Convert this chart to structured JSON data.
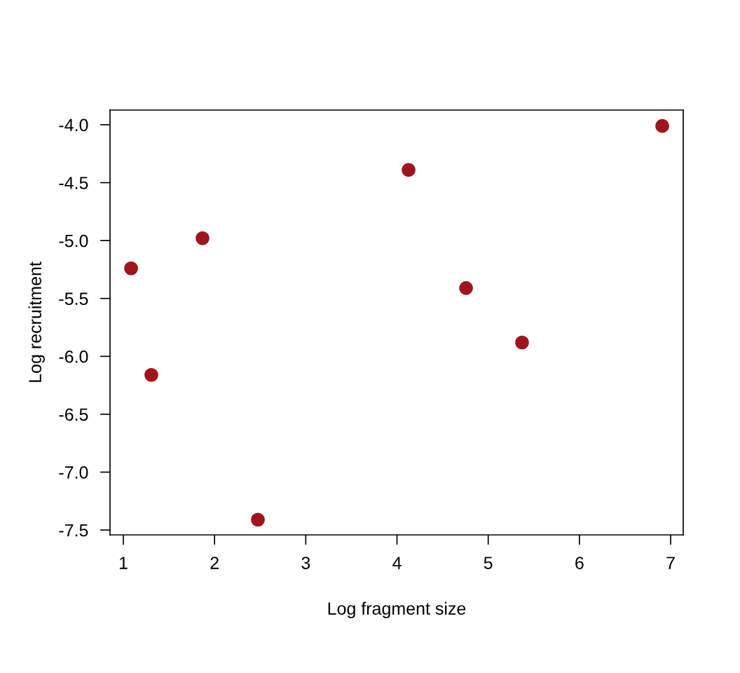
{
  "chart_data": {
    "type": "scatter",
    "xlabel": "Log fragment size",
    "ylabel": "Log recruitment",
    "x": [
      1.085,
      1.307,
      1.868,
      2.475,
      4.127,
      4.757,
      5.371,
      6.908
    ],
    "series": [
      {
        "color": "#a0141e",
        "values": [
          -5.24,
          -6.16,
          -4.98,
          -7.41,
          -4.39,
          -5.41,
          -5.88,
          -4.01
        ]
      }
    ],
    "xlim": [
      0.854,
      7.138
    ],
    "ylim": [
      -7.542,
      -3.873
    ],
    "xticks": [
      1,
      2,
      3,
      4,
      5,
      6,
      7
    ],
    "yticks": [
      {
        "value": -4.0,
        "label": "-4.0"
      },
      {
        "value": -4.5,
        "label": "-4.5"
      },
      {
        "value": -5.0,
        "label": "-5.0"
      },
      {
        "value": -5.5,
        "label": "-5.5"
      },
      {
        "value": -6.0,
        "label": "-6.0"
      },
      {
        "value": -6.5,
        "label": "-6.5"
      },
      {
        "value": -7.0,
        "label": "-7.0"
      },
      {
        "value": -7.5,
        "label": "-7.5"
      }
    ],
    "marker": "circle",
    "grid": false,
    "legend": false
  }
}
